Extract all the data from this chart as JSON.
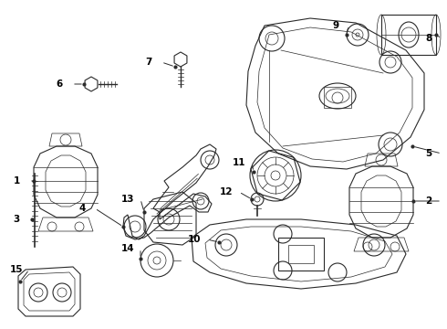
{
  "background_color": "#ffffff",
  "line_color": "#2a2a2a",
  "text_color": "#000000",
  "fig_width": 4.9,
  "fig_height": 3.6,
  "dpi": 100
}
